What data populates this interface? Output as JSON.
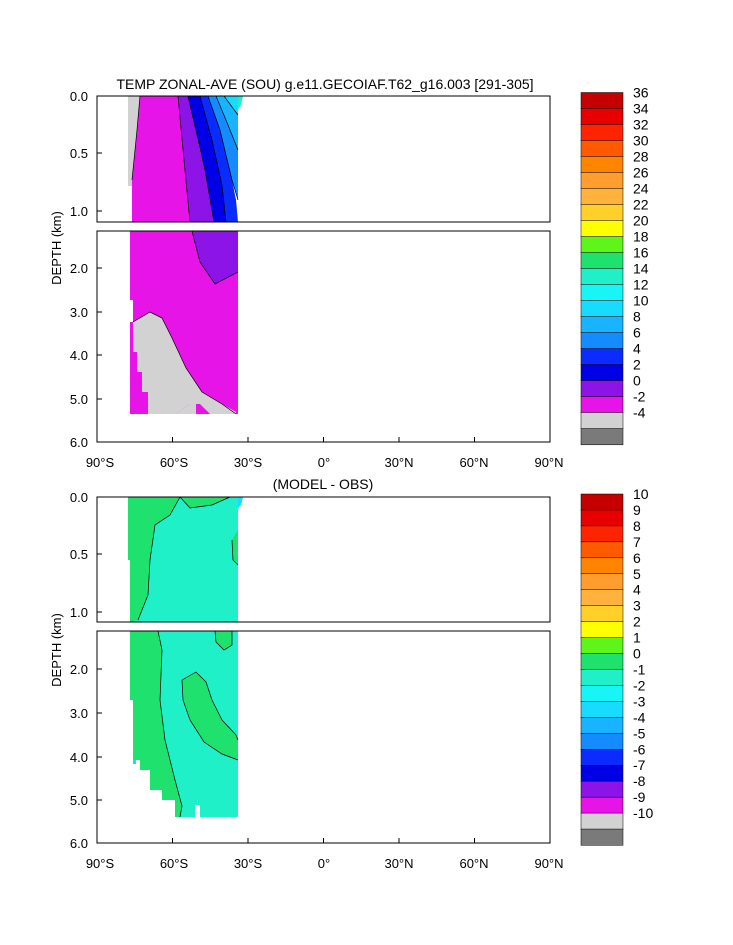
{
  "chart_data": [
    {
      "type": "heatmap",
      "title": "TEMP ZONAL-AVE (SOU) g.e11.GECOIAF.T62_g16.003 [291-305]",
      "ylabel": "DEPTH (km)",
      "xlim": [
        -90,
        90
      ],
      "ylim": [
        6.0,
        0.0
      ],
      "xticks": [
        {
          "value": -90,
          "label": "90°S"
        },
        {
          "value": -60,
          "label": "60°S"
        },
        {
          "value": -30,
          "label": "30°S"
        },
        {
          "value": 0,
          "label": "0°"
        },
        {
          "value": 30,
          "label": "30°N"
        },
        {
          "value": 60,
          "label": "60°N"
        },
        {
          "value": 90,
          "label": "90°N"
        }
      ],
      "yticks_upper": [
        "0.0",
        "0.5",
        "1.0"
      ],
      "yticks_lower": [
        "2.0",
        "3.0",
        "4.0",
        "5.0",
        "6.0"
      ],
      "colorbar_labels": [
        "36",
        "34",
        "32",
        "30",
        "28",
        "26",
        "24",
        "22",
        "20",
        "18",
        "16",
        "14",
        "12",
        "10",
        "8",
        "6",
        "4",
        "2",
        "0",
        "-2",
        "-4"
      ],
      "colorbar_colors": [
        "#c40000",
        "#e60000",
        "#ff2400",
        "#ff5a00",
        "#ff8400",
        "#ff9e2e",
        "#ffb23c",
        "#ffd02a",
        "#ffff00",
        "#5ef51a",
        "#1fe26e",
        "#1ff0c8",
        "#18f5f5",
        "#18dcff",
        "#18b4ff",
        "#148cff",
        "#0a2cff",
        "#0000e6",
        "#8c14e6",
        "#e614e6",
        "#d2d2d2",
        "#7a7a7a"
      ]
    },
    {
      "type": "heatmap",
      "title": "(MODEL - OBS)",
      "ylabel": "DEPTH (km)",
      "xlim": [
        -90,
        90
      ],
      "ylim": [
        6.0,
        0.0
      ],
      "xticks": [
        {
          "value": -90,
          "label": "90°S"
        },
        {
          "value": -60,
          "label": "60°S"
        },
        {
          "value": -30,
          "label": "30°S"
        },
        {
          "value": 0,
          "label": "0°"
        },
        {
          "value": 30,
          "label": "30°N"
        },
        {
          "value": 60,
          "label": "60°N"
        },
        {
          "value": 90,
          "label": "90°N"
        }
      ],
      "yticks_upper": [
        "0.0",
        "0.5",
        "1.0"
      ],
      "yticks_lower": [
        "2.0",
        "3.0",
        "4.0",
        "5.0",
        "6.0"
      ],
      "colorbar_labels": [
        "10",
        "9",
        "8",
        "7",
        "6",
        "5",
        "4",
        "3",
        "2",
        "1",
        "0",
        "-1",
        "-2",
        "-3",
        "-4",
        "-5",
        "-6",
        "-7",
        "-8",
        "-9",
        "-10"
      ],
      "colorbar_colors": [
        "#c40000",
        "#e60000",
        "#ff2400",
        "#ff5a00",
        "#ff8400",
        "#ff9e2e",
        "#ffb23c",
        "#ffd02a",
        "#ffff00",
        "#5ef51a",
        "#1fe26e",
        "#1ff0c8",
        "#18f5f5",
        "#18dcff",
        "#18b4ff",
        "#148cff",
        "#0a2cff",
        "#0000e6",
        "#8c14e6",
        "#e614e6",
        "#d2d2d2",
        "#7a7a7a"
      ]
    }
  ]
}
